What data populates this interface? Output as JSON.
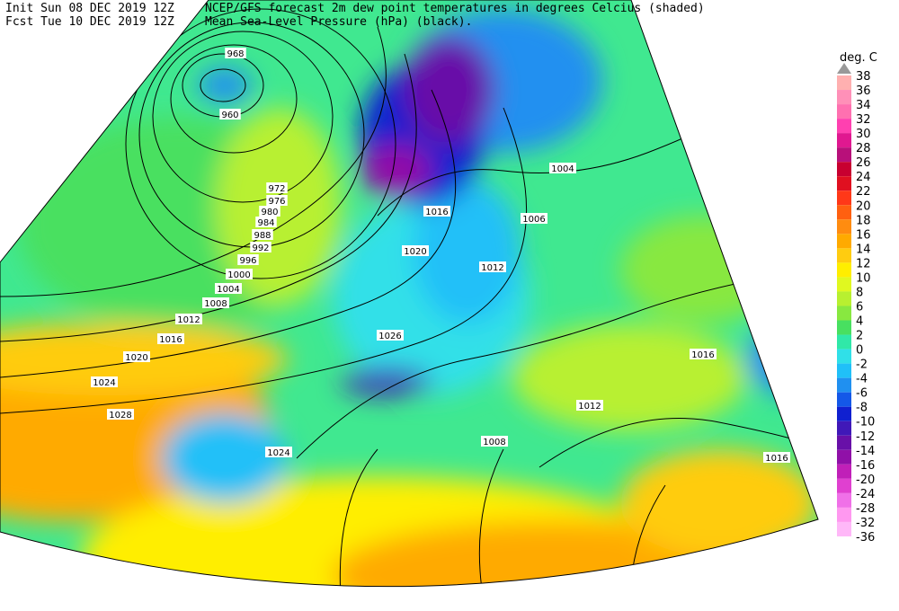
{
  "header": {
    "init": "Init  Sun 08 DEC 2019 12Z",
    "fcst": "Fcst Tue 10 DEC 2019 12Z",
    "line1": "NCEP/GFS forecast 2m dew point temperatures in degrees Celcius (shaded)",
    "line2": "Mean Sea-Level Pressure (hPa) (black)."
  },
  "legend": {
    "unit": "deg. C",
    "labels": [
      "38",
      "36",
      "34",
      "32",
      "30",
      "28",
      "26",
      "24",
      "22",
      "20",
      "18",
      "16",
      "14",
      "12",
      "10",
      "8",
      "6",
      "4",
      "2",
      "0",
      "-2",
      "-4",
      "-6",
      "-8",
      "-10",
      "-12",
      "-14",
      "-16",
      "-20",
      "-24",
      "-28",
      "-32",
      "-36"
    ],
    "colors": [
      "#ffb0b0",
      "#ff90b8",
      "#ff70b0",
      "#ff40b0",
      "#e01890",
      "#b8107a",
      "#c80030",
      "#e01020",
      "#ff3818",
      "#ff6010",
      "#ff8c10",
      "#ffaa00",
      "#ffcc10",
      "#ffee00",
      "#e0f820",
      "#b8f030",
      "#88e840",
      "#48e060",
      "#30e8a8",
      "#30e0e8",
      "#20c0f8",
      "#2090f0",
      "#1458e8",
      "#1020d0",
      "#4018b8",
      "#6810a8",
      "#9010a8",
      "#c020b8",
      "#e040d0",
      "#f070e8",
      "#ff98f0",
      "#ffb8f8"
    ]
  },
  "isobars": [
    "968",
    "960",
    "972",
    "976",
    "980",
    "984",
    "988",
    "992",
    "996",
    "1000",
    "1004",
    "1008",
    "1012",
    "1016",
    "1020",
    "1024",
    "1028",
    "1024",
    "1026",
    "1020",
    "1016",
    "1012",
    "1004",
    "1006",
    "1008",
    "1012",
    "1016",
    "1016"
  ]
}
